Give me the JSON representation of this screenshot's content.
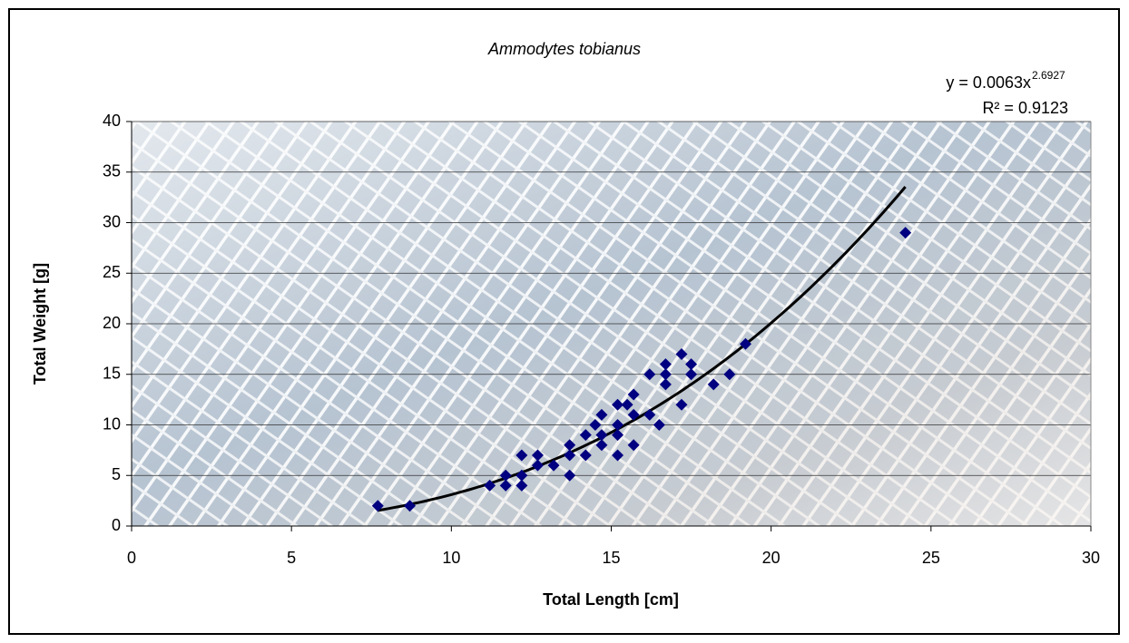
{
  "chart_data": {
    "type": "scatter",
    "title": "Ammodytes tobianus",
    "x_label": "Total Length [cm]",
    "y_label": "Total Weight [g]",
    "xlim": [
      0,
      30
    ],
    "ylim": [
      0,
      40
    ],
    "xticks": [
      0,
      5,
      10,
      15,
      20,
      25,
      30
    ],
    "yticks": [
      0,
      5,
      10,
      15,
      20,
      25,
      30,
      35,
      40
    ],
    "grid": true,
    "series": [
      {
        "color": "#000080",
        "x": [
          7.7,
          8.7,
          11.2,
          11.7,
          11.7,
          12.2,
          12.2,
          12.2,
          12.7,
          12.7,
          13.2,
          13.7,
          13.7,
          13.7,
          14.2,
          14.2,
          14.5,
          14.7,
          14.7,
          14.7,
          15.2,
          15.2,
          15.2,
          15.2,
          15.5,
          15.7,
          15.7,
          15.7,
          16.2,
          16.2,
          16.5,
          16.7,
          16.7,
          16.7,
          17.2,
          17.2,
          17.5,
          17.5,
          18.2,
          18.7,
          19.2,
          24.2
        ],
        "values": [
          2,
          2,
          4,
          5,
          4,
          7,
          5,
          4,
          7,
          6,
          6,
          8,
          7,
          5,
          9,
          7,
          10,
          11,
          8,
          9,
          12,
          10,
          9,
          7,
          12,
          11,
          13,
          8,
          15,
          11,
          10,
          16,
          15,
          14,
          17,
          12,
          16,
          15,
          14,
          15,
          18,
          29
        ]
      }
    ],
    "trendline": {
      "color": "#000000",
      "equation": "y = 0.0063x",
      "coefficient": 0.0063,
      "exponent": 2.6927,
      "r2_label": "R² = 0.9123"
    }
  }
}
